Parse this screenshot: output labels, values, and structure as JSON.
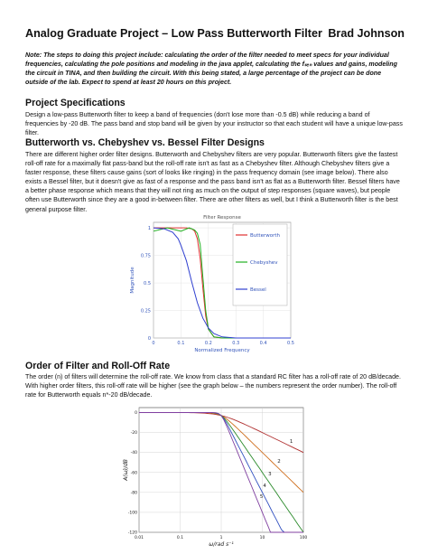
{
  "header": {
    "title": "Analog Graduate Project – Low Pass Butterworth Filter",
    "author": "Brad Johnson"
  },
  "note": "Note: The steps to doing this project include: calculating the order of the filter needed to meet specs for your individual frequencies, calculating the pole positions and modeling in the java applet, calculating the fₛₑₙ values and gains, modeling the circuit in TINA, and then building the circuit.  With this being stated, a large percentage of the project can be done outside of the lab.  Expect to spend at least 20 hours on this project.",
  "sections": {
    "spec": {
      "heading": "Project Specifications",
      "body": "Design a low-pass Butterworth filter to keep a band of frequencies (don't lose more than -0.5 dB) while reducing a band of frequencies by -20 dB.  The pass band and stop band will be given by your instructor so that each student will have a unique low-pass filter."
    },
    "filters": {
      "heading": "Butterworth vs. Chebyshev vs. Bessel Filter Designs",
      "body": "There are different higher order filter designs.  Butterworth and Chebyshev filters are very popular.  Butterworth filters give the fastest roll-off rate for a maximally flat pass-band but the roll-off rate isn't as fast as a Chebyshev filter.  Although Chebyshev filters give a faster response, these filters cause gains (sort of looks like ringing) in the pass frequency domain (see image below).  There also exists a Bessel filter, but it doesn't give as fast of a response and the pass band isn't as flat as a Butterworth filter.  Bessel filters have a better phase response which means that they will not ring as much on the output of step responses (square waves), but people often use Butterworth since they are a good in-between filter.  There are other filters as well, but I think a Butterworth filter is the best general purpose filter."
    },
    "order": {
      "heading": "Order of Filter and Roll-Off Rate",
      "body": "The order (n) of filters will determine the roll-off rate.  We know from class that a standard RC filter has a roll-off rate of 20 dB/decade.  With higher order filters, this roll-off rate will be higher (see the graph below – the numbers represent the order number).  The roll-off rate for Butterworth equals n*-20 dB/decade."
    }
  },
  "chart_data": [
    {
      "type": "line",
      "title": "Filter Response",
      "xlabel": "Normalized Frequency",
      "ylabel": "Magnitude",
      "xlim": [
        0,
        0.5
      ],
      "ylim": [
        0,
        1.05
      ],
      "x_ticks": [
        "0",
        "0.1",
        "0.2",
        "0.3",
        "0.4",
        "0.5"
      ],
      "y_ticks": [
        "0",
        "0.25",
        "0.5",
        "0.75",
        "1"
      ],
      "grid": true,
      "legend_position": "right",
      "series": [
        {
          "name": "Butterworth",
          "color": "#e03030",
          "x": [
            0,
            0.05,
            0.1,
            0.12,
            0.14,
            0.15,
            0.16,
            0.17,
            0.18,
            0.19,
            0.2,
            0.22,
            0.25,
            0.3,
            0.5
          ],
          "y": [
            1,
            1,
            1,
            1,
            0.99,
            0.97,
            0.9,
            0.72,
            0.45,
            0.2,
            0.08,
            0.01,
            0,
            0,
            0
          ]
        },
        {
          "name": "Chebyshev",
          "color": "#20b020",
          "x": [
            0,
            0.05,
            0.1,
            0.13,
            0.15,
            0.16,
            0.17,
            0.18,
            0.19,
            0.2,
            0.22,
            0.25,
            0.3,
            0.5
          ],
          "y": [
            0.97,
            1,
            0.97,
            1,
            0.98,
            0.95,
            0.85,
            0.55,
            0.25,
            0.08,
            0.01,
            0,
            0,
            0
          ]
        },
        {
          "name": "Bessel",
          "color": "#3040d0",
          "x": [
            0,
            0.04,
            0.07,
            0.09,
            0.1,
            0.12,
            0.14,
            0.16,
            0.18,
            0.2,
            0.22,
            0.25,
            0.3,
            0.5
          ],
          "y": [
            1,
            0.99,
            0.96,
            0.9,
            0.84,
            0.7,
            0.5,
            0.32,
            0.18,
            0.09,
            0.04,
            0.01,
            0,
            0
          ]
        }
      ]
    },
    {
      "type": "line",
      "title": "",
      "xlabel": "ω/rad s⁻¹",
      "ylabel": "A(ω)/dB",
      "x_scale": "log",
      "xlim": [
        0.01,
        100
      ],
      "ylim": [
        -120,
        5
      ],
      "x_ticks": [
        "0.01",
        "0.1",
        "1",
        "10",
        "100"
      ],
      "y_ticks": [
        "0",
        "-20",
        "-40",
        "-60",
        "-80",
        "-100",
        "-120"
      ],
      "grid": true,
      "series_labels": [
        "1",
        "2",
        "3",
        "4",
        "5"
      ],
      "orders": [
        1,
        2,
        3,
        4,
        5
      ],
      "color": "#b03030"
    }
  ]
}
